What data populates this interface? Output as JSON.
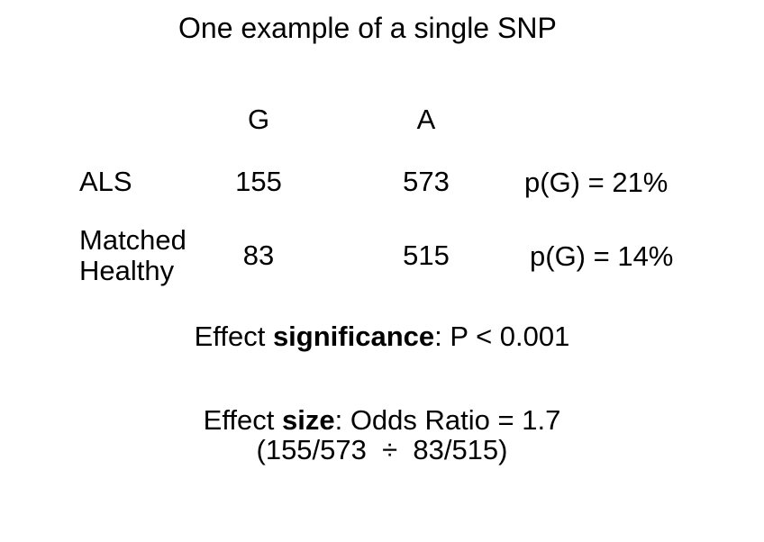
{
  "title": "One example of a single SNP",
  "table": {
    "col_headers": [
      "G",
      "A"
    ],
    "rows": [
      {
        "label": "ALS",
        "g": "155",
        "a": "573",
        "p_note": "p(G) = 21%"
      },
      {
        "label": "Matched Healthy",
        "g": "83",
        "a": "515",
        "p_note": "p(G) = 14%"
      }
    ]
  },
  "effect_significance": {
    "prefix": "Effect ",
    "bold": "significance",
    "suffix": ": P < 0.001"
  },
  "effect_size": {
    "prefix": "Effect ",
    "bold": "size",
    "suffix": ": Odds Ratio = 1.7"
  },
  "ratio_formula": "(155/573  ÷  83/515)",
  "colors": {
    "background": "#ffffff",
    "text": "#000000"
  }
}
